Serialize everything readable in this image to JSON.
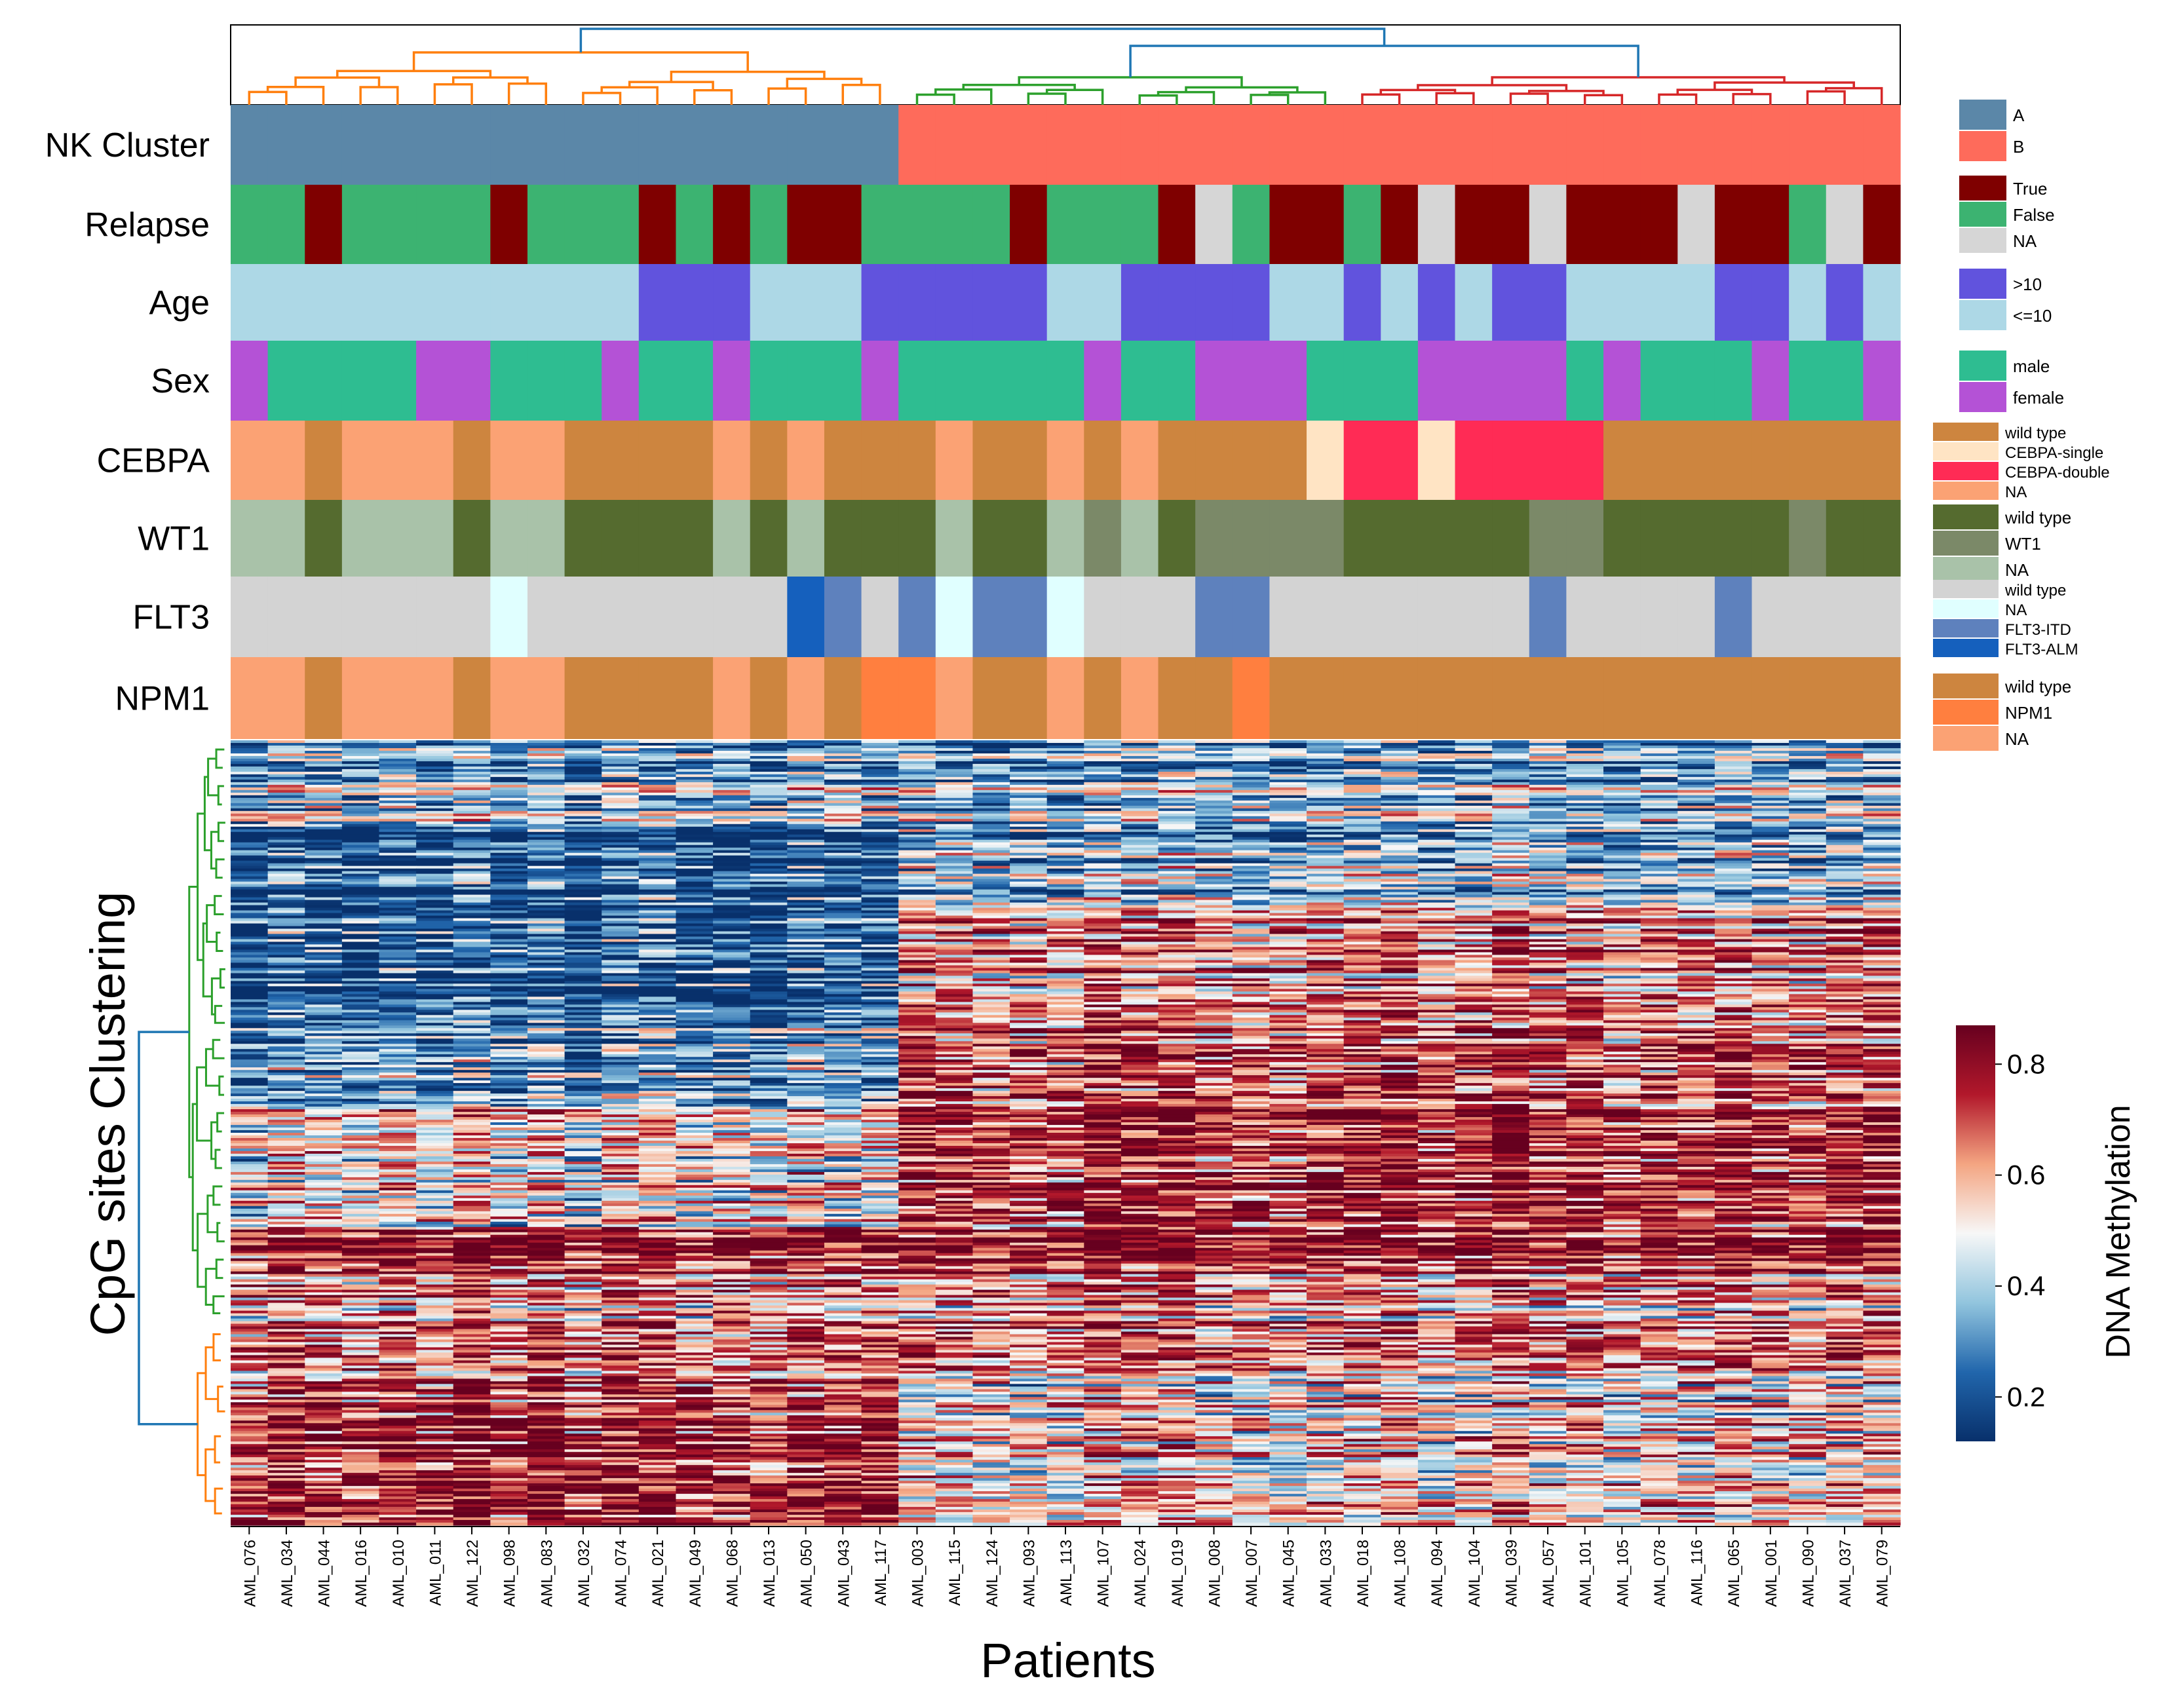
{
  "chart_data": {
    "type": "heatmap",
    "xlabel": "Patients",
    "ylabel": "CpG sites Clustering",
    "colorbar": {
      "label": "DNA Methylation",
      "range": [
        0.12,
        0.87
      ],
      "ticks": [
        "0.2",
        "0.4",
        "0.6",
        "0.8"
      ],
      "tick_values": [
        0.2,
        0.4,
        0.6,
        0.8
      ],
      "colors": [
        "#08306b",
        "#2166ac",
        "#92c5de",
        "#f7f7f7",
        "#f4a582",
        "#b2182b",
        "#67001f"
      ]
    },
    "patients": [
      "AML_076",
      "AML_034",
      "AML_044",
      "AML_016",
      "AML_010",
      "AML_011",
      "AML_122",
      "AML_098",
      "AML_083",
      "AML_032",
      "AML_074",
      "AML_021",
      "AML_049",
      "AML_068",
      "AML_013",
      "AML_050",
      "AML_043",
      "AML_117",
      "AML_003",
      "AML_115",
      "AML_124",
      "AML_093",
      "AML_113",
      "AML_107",
      "AML_024",
      "AML_019",
      "AML_008",
      "AML_007",
      "AML_045",
      "AML_033",
      "AML_018",
      "AML_108",
      "AML_094",
      "AML_104",
      "AML_039",
      "AML_057",
      "AML_101",
      "AML_105",
      "AML_078",
      "AML_116",
      "AML_065",
      "AML_001",
      "AML_090",
      "AML_037",
      "AML_079"
    ],
    "annotation_tracks": [
      {
        "name": "NK Cluster",
        "legend": [
          {
            "label": "A",
            "color": "#5b87a8"
          },
          {
            "label": "B",
            "color": "#fe6b5b"
          }
        ],
        "values": [
          "A",
          "A",
          "A",
          "A",
          "A",
          "A",
          "A",
          "A",
          "A",
          "A",
          "A",
          "A",
          "A",
          "A",
          "A",
          "A",
          "A",
          "A",
          "B",
          "B",
          "B",
          "B",
          "B",
          "B",
          "B",
          "B",
          "B",
          "B",
          "B",
          "B",
          "B",
          "B",
          "B",
          "B",
          "B",
          "B",
          "B",
          "B",
          "B",
          "B",
          "B",
          "B",
          "B",
          "B",
          "B"
        ]
      },
      {
        "name": "Relapse",
        "legend": [
          {
            "label": "True",
            "color": "#7f0000"
          },
          {
            "label": "False",
            "color": "#3cb371"
          },
          {
            "label": "NA",
            "color": "#d6d6d6"
          }
        ],
        "values": [
          "False",
          "False",
          "True",
          "False",
          "False",
          "False",
          "False",
          "True",
          "False",
          "False",
          "False",
          "True",
          "False",
          "True",
          "False",
          "True",
          "True",
          "False",
          "False",
          "False",
          "False",
          "True",
          "False",
          "False",
          "False",
          "True",
          "NA",
          "False",
          "True",
          "True",
          "False",
          "True",
          "NA",
          "True",
          "True",
          "NA",
          "True",
          "True",
          "True",
          "NA",
          "True",
          "True",
          "False",
          "NA",
          "True"
        ]
      },
      {
        "name": "Age",
        "legend": [
          {
            "label": ">10",
            "color": "#6153dd"
          },
          {
            "label": "<=10",
            "color": "#add8e6"
          }
        ],
        "values": [
          "<=10",
          "<=10",
          "<=10",
          "<=10",
          "<=10",
          "<=10",
          "<=10",
          "<=10",
          "<=10",
          "<=10",
          "<=10",
          ">10",
          ">10",
          ">10",
          "<=10",
          "<=10",
          "<=10",
          ">10",
          ">10",
          ">10",
          ">10",
          ">10",
          "<=10",
          "<=10",
          ">10",
          ">10",
          ">10",
          ">10",
          "<=10",
          "<=10",
          ">10",
          "<=10",
          ">10",
          "<=10",
          ">10",
          ">10",
          "<=10",
          "<=10",
          "<=10",
          "<=10",
          ">10",
          ">10",
          "<=10",
          ">10",
          "<=10"
        ]
      },
      {
        "name": "Sex",
        "legend": [
          {
            "label": "male",
            "color": "#2ebd91"
          },
          {
            "label": "female",
            "color": "#b452d6"
          }
        ],
        "values": [
          "female",
          "male",
          "male",
          "male",
          "male",
          "female",
          "female",
          "male",
          "male",
          "male",
          "female",
          "male",
          "male",
          "female",
          "male",
          "male",
          "male",
          "female",
          "male",
          "male",
          "male",
          "male",
          "male",
          "female",
          "male",
          "male",
          "female",
          "female",
          "female",
          "male",
          "male",
          "male",
          "female",
          "female",
          "female",
          "female",
          "male",
          "female",
          "male",
          "male",
          "male",
          "female",
          "male",
          "male",
          "female"
        ]
      },
      {
        "name": "CEBPA",
        "legend": [
          {
            "label": "wild type",
            "color": "#cd853f"
          },
          {
            "label": "CEBPA-single",
            "color": "#ffe4c4"
          },
          {
            "label": "CEBPA-double",
            "color": "#ff2b55"
          },
          {
            "label": "NA",
            "color": "#fba274"
          }
        ],
        "values": [
          "NA",
          "NA",
          "wild type",
          "NA",
          "NA",
          "NA",
          "wild type",
          "NA",
          "NA",
          "wild type",
          "wild type",
          "wild type",
          "wild type",
          "NA",
          "wild type",
          "NA",
          "wild type",
          "wild type",
          "wild type",
          "NA",
          "wild type",
          "wild type",
          "NA",
          "wild type",
          "NA",
          "wild type",
          "wild type",
          "wild type",
          "wild type",
          "CEBPA-single",
          "CEBPA-double",
          "CEBPA-double",
          "CEBPA-single",
          "CEBPA-double",
          "CEBPA-double",
          "CEBPA-double",
          "CEBPA-double",
          "wild type",
          "wild type",
          "wild type",
          "wild type",
          "wild type",
          "wild type",
          "wild type",
          "wild type"
        ]
      },
      {
        "name": "WT1",
        "legend": [
          {
            "label": "wild type",
            "color": "#556b2f"
          },
          {
            "label": "WT1",
            "color": "#7b8968"
          },
          {
            "label": "NA",
            "color": "#a9c2a9"
          }
        ],
        "values": [
          "NA",
          "NA",
          "wild type",
          "NA",
          "NA",
          "NA",
          "wild type",
          "NA",
          "NA",
          "wild type",
          "wild type",
          "wild type",
          "wild type",
          "NA",
          "wild type",
          "NA",
          "wild type",
          "wild type",
          "wild type",
          "NA",
          "wild type",
          "wild type",
          "NA",
          "WT1",
          "NA",
          "wild type",
          "WT1",
          "WT1",
          "WT1",
          "WT1",
          "wild type",
          "wild type",
          "wild type",
          "wild type",
          "wild type",
          "WT1",
          "WT1",
          "wild type",
          "wild type",
          "wild type",
          "wild type",
          "wild type",
          "WT1",
          "wild type",
          "wild type"
        ]
      },
      {
        "name": "FLT3",
        "legend": [
          {
            "label": "wild type",
            "color": "#d3d3d3"
          },
          {
            "label": "NA",
            "color": "#e0ffff"
          },
          {
            "label": "FLT3-ITD",
            "color": "#5e81bd"
          },
          {
            "label": "FLT3-ALM",
            "color": "#1560bd"
          }
        ],
        "values": [
          "wild type",
          "wild type",
          "wild type",
          "wild type",
          "wild type",
          "wild type",
          "wild type",
          "NA",
          "wild type",
          "wild type",
          "wild type",
          "wild type",
          "wild type",
          "wild type",
          "wild type",
          "FLT3-ALM",
          "FLT3-ITD",
          "wild type",
          "FLT3-ITD",
          "NA",
          "FLT3-ITD",
          "FLT3-ITD",
          "NA",
          "wild type",
          "wild type",
          "wild type",
          "FLT3-ITD",
          "FLT3-ITD",
          "wild type",
          "wild type",
          "wild type",
          "wild type",
          "wild type",
          "wild type",
          "wild type",
          "FLT3-ITD",
          "wild type",
          "wild type",
          "wild type",
          "wild type",
          "FLT3-ITD",
          "wild type",
          "wild type",
          "wild type",
          "wild type"
        ]
      },
      {
        "name": "NPM1",
        "legend": [
          {
            "label": "wild type",
            "color": "#cd853f"
          },
          {
            "label": "NPM1",
            "color": "#ff7f3f"
          },
          {
            "label": "NA",
            "color": "#fba274"
          }
        ],
        "values": [
          "NA",
          "NA",
          "wild type",
          "NA",
          "NA",
          "NA",
          "wild type",
          "NA",
          "NA",
          "wild type",
          "wild type",
          "wild type",
          "wild type",
          "NA",
          "wild type",
          "NA",
          "wild type",
          "NPM1",
          "NPM1",
          "NA",
          "wild type",
          "wild type",
          "NA",
          "wild type",
          "NA",
          "wild type",
          "wild type",
          "NPM1",
          "wild type",
          "wild type",
          "wild type",
          "wild type",
          "wild type",
          "wild type",
          "wild type",
          "wild type",
          "wild type",
          "wild type",
          "wild type",
          "wild type",
          "wild type",
          "wild type",
          "wild type",
          "wild type",
          "wild type"
        ]
      }
    ],
    "column_dendrogram": {
      "groups": [
        {
          "color": "#ff7f0e",
          "first": 0,
          "last": 17
        },
        {
          "color": "#2ca02c",
          "first": 18,
          "last": 29
        },
        {
          "color": "#d62728",
          "first": 30,
          "last": 44
        }
      ],
      "root_color": "#1f77b4"
    },
    "row_dendrogram": {
      "groups": [
        {
          "color": "#2ca02c",
          "share": 0.74
        },
        {
          "color": "#ff7f0e",
          "share": 0.26
        }
      ],
      "root_color": "#1f77b4"
    },
    "row_blocks": [
      {
        "share": 0.06,
        "A": 0.3,
        "B": 0.32
      },
      {
        "share": 0.05,
        "A": 0.42,
        "B": 0.4
      },
      {
        "share": 0.1,
        "A": 0.2,
        "B": 0.38
      },
      {
        "share": 0.13,
        "A": 0.22,
        "B": 0.66
      },
      {
        "share": 0.12,
        "A": 0.3,
        "B": 0.7
      },
      {
        "share": 0.16,
        "A": 0.5,
        "B": 0.74
      },
      {
        "share": 0.06,
        "A": 0.8,
        "B": 0.8
      },
      {
        "share": 0.13,
        "A": 0.62,
        "B": 0.62
      },
      {
        "share": 0.19,
        "A": 0.74,
        "B": 0.52
      }
    ],
    "n_cpg_rows": 300
  }
}
